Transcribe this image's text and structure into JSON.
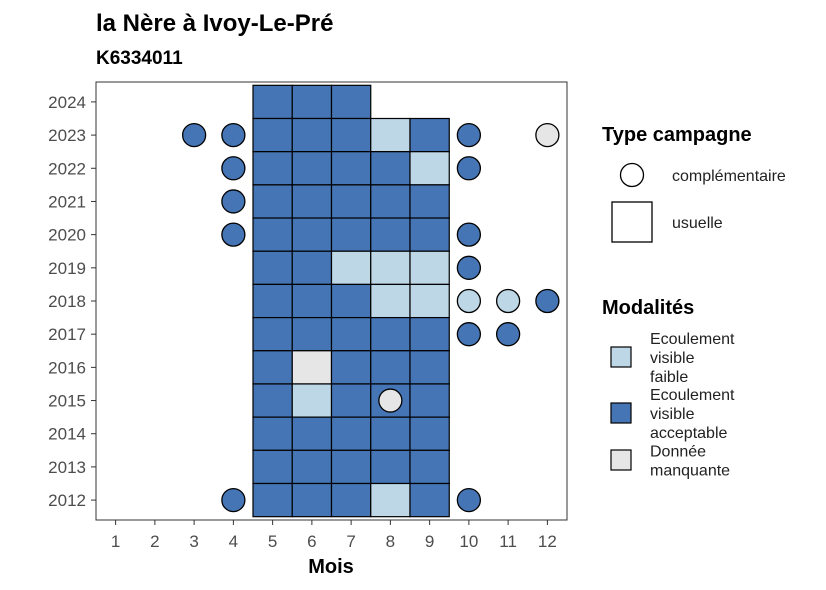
{
  "chart_data": {
    "type": "heatmap",
    "title": "la Nère à Ivoy-Le-Pré",
    "subtitle": "K6334011",
    "xlabel": "Mois",
    "ylabel": "",
    "x_ticks": [
      1,
      2,
      3,
      4,
      5,
      6,
      7,
      8,
      9,
      10,
      11,
      12
    ],
    "y_ticks": [
      2012,
      2013,
      2014,
      2015,
      2016,
      2017,
      2018,
      2019,
      2020,
      2021,
      2022,
      2023,
      2024
    ],
    "xlim": [
      0.5,
      12.5
    ],
    "ylim": [
      2011.4,
      2024.6
    ],
    "legend_shape": {
      "title": "Type campagne",
      "entries": [
        {
          "key": "complementaire",
          "label": "complémentaire",
          "shape": "circle"
        },
        {
          "key": "usuelle",
          "label": "usuelle",
          "shape": "square"
        }
      ]
    },
    "legend_fill": {
      "title": "Modalités",
      "entries": [
        {
          "key": "faible",
          "lines": [
            "Ecoulement",
            "visible",
            "faible"
          ],
          "color": "#bdd7e7"
        },
        {
          "key": "acceptable",
          "lines": [
            "Ecoulement",
            "visible",
            "acceptable"
          ],
          "color": "#4575b4"
        },
        {
          "key": "manquante",
          "lines": [
            "Donnée",
            "manquante"
          ],
          "color": "#e6e6e6"
        }
      ]
    },
    "usuelle": [
      {
        "year": 2024,
        "months": {
          "5": "acceptable",
          "6": "acceptable",
          "7": "acceptable"
        }
      },
      {
        "year": 2023,
        "months": {
          "5": "acceptable",
          "6": "acceptable",
          "7": "acceptable",
          "8": "faible",
          "9": "acceptable"
        }
      },
      {
        "year": 2022,
        "months": {
          "5": "acceptable",
          "6": "acceptable",
          "7": "acceptable",
          "8": "acceptable",
          "9": "faible"
        }
      },
      {
        "year": 2021,
        "months": {
          "5": "acceptable",
          "6": "acceptable",
          "7": "acceptable",
          "8": "acceptable",
          "9": "acceptable"
        }
      },
      {
        "year": 2020,
        "months": {
          "5": "acceptable",
          "6": "acceptable",
          "7": "acceptable",
          "8": "acceptable",
          "9": "acceptable"
        }
      },
      {
        "year": 2019,
        "months": {
          "5": "acceptable",
          "6": "acceptable",
          "7": "faible",
          "8": "faible",
          "9": "faible"
        }
      },
      {
        "year": 2018,
        "months": {
          "5": "acceptable",
          "6": "acceptable",
          "7": "acceptable",
          "8": "faible",
          "9": "faible"
        }
      },
      {
        "year": 2017,
        "months": {
          "5": "acceptable",
          "6": "acceptable",
          "7": "acceptable",
          "8": "acceptable",
          "9": "acceptable"
        }
      },
      {
        "year": 2016,
        "months": {
          "5": "acceptable",
          "6": "manquante",
          "7": "acceptable",
          "8": "acceptable",
          "9": "acceptable"
        }
      },
      {
        "year": 2015,
        "months": {
          "5": "acceptable",
          "6": "faible",
          "7": "acceptable",
          "8": "acceptable",
          "9": "acceptable"
        }
      },
      {
        "year": 2014,
        "months": {
          "5": "acceptable",
          "6": "acceptable",
          "7": "acceptable",
          "8": "acceptable",
          "9": "acceptable"
        }
      },
      {
        "year": 2013,
        "months": {
          "5": "acceptable",
          "6": "acceptable",
          "7": "acceptable",
          "8": "acceptable",
          "9": "acceptable"
        }
      },
      {
        "year": 2012,
        "months": {
          "5": "acceptable",
          "6": "acceptable",
          "7": "acceptable",
          "8": "faible",
          "9": "acceptable"
        }
      }
    ],
    "complementaire": [
      {
        "year": 2023,
        "month": 3,
        "value": "acceptable"
      },
      {
        "year": 2023,
        "month": 4,
        "value": "acceptable"
      },
      {
        "year": 2023,
        "month": 10,
        "value": "acceptable"
      },
      {
        "year": 2023,
        "month": 12,
        "value": "manquante"
      },
      {
        "year": 2022,
        "month": 4,
        "value": "acceptable"
      },
      {
        "year": 2022,
        "month": 10,
        "value": "acceptable"
      },
      {
        "year": 2021,
        "month": 4,
        "value": "acceptable"
      },
      {
        "year": 2020,
        "month": 4,
        "value": "acceptable"
      },
      {
        "year": 2020,
        "month": 10,
        "value": "acceptable"
      },
      {
        "year": 2019,
        "month": 10,
        "value": "acceptable"
      },
      {
        "year": 2018,
        "month": 10,
        "value": "faible"
      },
      {
        "year": 2018,
        "month": 11,
        "value": "faible"
      },
      {
        "year": 2018,
        "month": 12,
        "value": "acceptable"
      },
      {
        "year": 2017,
        "month": 10,
        "value": "acceptable"
      },
      {
        "year": 2017,
        "month": 11,
        "value": "acceptable"
      },
      {
        "year": 2015,
        "month": 8,
        "value": "manquante"
      },
      {
        "year": 2012,
        "month": 4,
        "value": "acceptable"
      },
      {
        "year": 2012,
        "month": 10,
        "value": "acceptable"
      }
    ]
  }
}
